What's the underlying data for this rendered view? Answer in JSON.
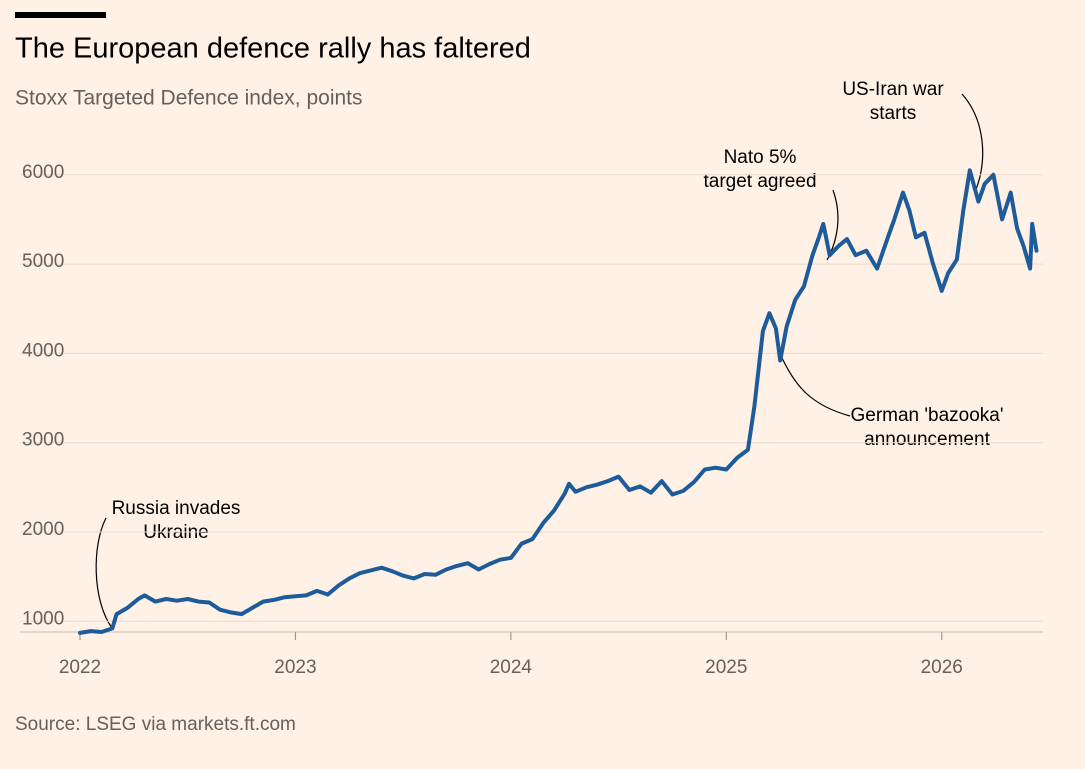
{
  "chart_data": {
    "type": "line",
    "title": "The European defence rally has faltered",
    "subtitle": "Stoxx Targeted Defence index, points",
    "source": "Source: LSEG via markets.ft.com",
    "annotations": [
      {
        "lines": [
          "Russia invades",
          "Ukraine"
        ]
      },
      {
        "lines": [
          "Nato 5%",
          "target agreed"
        ]
      },
      {
        "lines": [
          "US-Iran war",
          "starts"
        ]
      },
      {
        "lines": [
          "German 'bazooka'",
          "announcement"
        ]
      }
    ],
    "xlim": [
      2022,
      2026.47
    ],
    "xticks": [
      2022,
      2023,
      2024,
      2025,
      2026
    ],
    "ylim": [
      880,
      6300
    ],
    "yticks": [
      1000,
      2000,
      3000,
      4000,
      5000,
      6000
    ],
    "grid": true,
    "series": [
      {
        "name": "Stoxx Targeted Defence index",
        "color": "#1d5b9b",
        "x": [
          2022.0,
          2022.05,
          2022.1,
          2022.15,
          2022.17,
          2022.22,
          2022.27,
          2022.3,
          2022.35,
          2022.4,
          2022.45,
          2022.5,
          2022.55,
          2022.6,
          2022.65,
          2022.7,
          2022.75,
          2022.8,
          2022.85,
          2022.9,
          2022.95,
          2023.0,
          2023.05,
          2023.1,
          2023.15,
          2023.2,
          2023.25,
          2023.3,
          2023.35,
          2023.4,
          2023.45,
          2023.5,
          2023.55,
          2023.6,
          2023.65,
          2023.7,
          2023.75,
          2023.8,
          2023.85,
          2023.9,
          2023.95,
          2024.0,
          2024.05,
          2024.1,
          2024.15,
          2024.2,
          2024.25,
          2024.27,
          2024.3,
          2024.35,
          2024.4,
          2024.45,
          2024.5,
          2024.55,
          2024.6,
          2024.65,
          2024.7,
          2024.75,
          2024.8,
          2024.85,
          2024.9,
          2024.95,
          2025.0,
          2025.05,
          2025.1,
          2025.13,
          2025.17,
          2025.2,
          2025.23,
          2025.25,
          2025.28,
          2025.32,
          2025.36,
          2025.4,
          2025.43,
          2025.45,
          2025.48,
          2025.52,
          2025.56,
          2025.6,
          2025.65,
          2025.7,
          2025.75,
          2025.78,
          2025.82,
          2025.85,
          2025.88,
          2025.92,
          2025.96,
          2026.0,
          2026.03,
          2026.07,
          2026.1,
          2026.13,
          2026.17,
          2026.2,
          2026.24,
          2026.28,
          2026.32,
          2026.35,
          2026.38,
          2026.41,
          2026.42,
          2026.44
        ],
        "values": [
          870,
          890,
          880,
          920,
          1080,
          1150,
          1250,
          1290,
          1220,
          1250,
          1230,
          1250,
          1220,
          1210,
          1130,
          1100,
          1080,
          1150,
          1220,
          1240,
          1270,
          1280,
          1290,
          1340,
          1300,
          1400,
          1480,
          1540,
          1570,
          1600,
          1560,
          1510,
          1480,
          1530,
          1520,
          1580,
          1620,
          1650,
          1580,
          1640,
          1690,
          1710,
          1870,
          1920,
          2100,
          2240,
          2430,
          2540,
          2450,
          2500,
          2530,
          2570,
          2620,
          2470,
          2510,
          2440,
          2570,
          2420,
          2460,
          2560,
          2700,
          2720,
          2700,
          2830,
          2920,
          3400,
          4250,
          4450,
          4280,
          3920,
          4300,
          4600,
          4750,
          5100,
          5300,
          5450,
          5100,
          5200,
          5280,
          5100,
          5150,
          4950,
          5300,
          5500,
          5800,
          5600,
          5300,
          5350,
          5000,
          4700,
          4900,
          5050,
          5600,
          6050,
          5700,
          5900,
          6000,
          5500,
          5800,
          5400,
          5200,
          4950,
          5450,
          5150
        ]
      }
    ]
  }
}
